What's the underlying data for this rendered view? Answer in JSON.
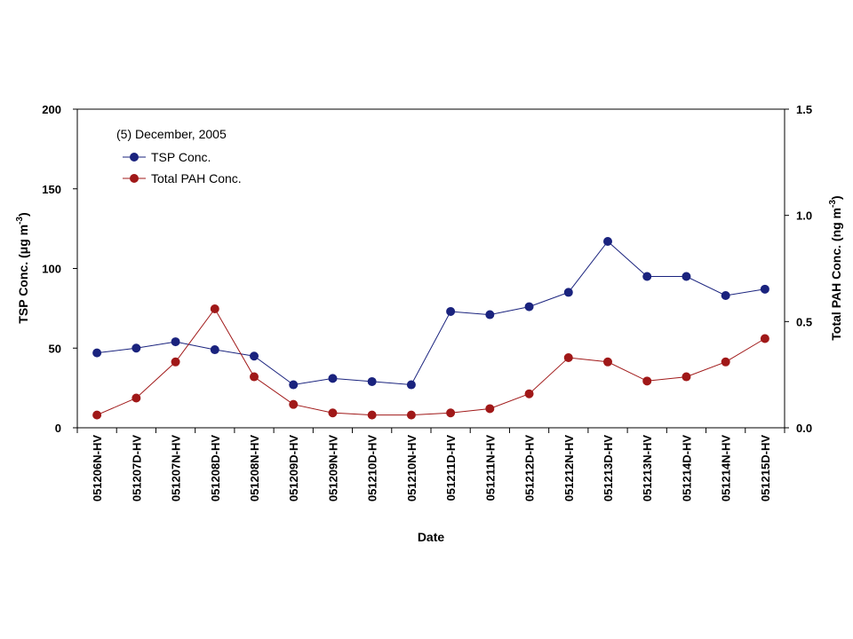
{
  "chart_data": {
    "type": "line",
    "annotation": "(5) December, 2005",
    "xlabel": "Date",
    "ylabel_left": "TSP Conc. (μg m-3)",
    "ylabel_right": "Total PAH Conc. (ng m-3)",
    "ylim_left": [
      0,
      200
    ],
    "yticks_left": [
      "0",
      "50",
      "100",
      "150",
      "200"
    ],
    "ylim_right": [
      0,
      1.5
    ],
    "yticks_right": [
      "0.0",
      "0.5",
      "1.0",
      "1.5"
    ],
    "grid": false,
    "legend_position": "top-left",
    "categories": [
      "051206N-HV",
      "051207D-HV",
      "051207N-HV",
      "051208D-HV",
      "051208N-HV",
      "051209D-HV",
      "051209N-HV",
      "051210D-HV",
      "051210N-HV",
      "051211D-HV",
      "051211N-HV",
      "051212D-HV",
      "051212N-HV",
      "051213D-HV",
      "051213N-HV",
      "051214D-HV",
      "051214N-HV",
      "051215D-HV"
    ],
    "series": [
      {
        "name": "TSP Conc.",
        "axis": "left",
        "color": "#1a237e",
        "values": [
          47,
          50,
          54,
          49,
          45,
          27,
          31,
          29,
          27,
          73,
          71,
          76,
          85,
          117,
          95,
          95,
          83,
          87
        ]
      },
      {
        "name": "Total PAH Conc.",
        "axis": "right",
        "color": "#a01818",
        "values": [
          0.06,
          0.14,
          0.31,
          0.56,
          0.24,
          0.11,
          0.07,
          0.06,
          0.06,
          0.07,
          0.09,
          0.16,
          0.33,
          0.31,
          0.22,
          0.24,
          0.31,
          0.42
        ]
      }
    ]
  }
}
